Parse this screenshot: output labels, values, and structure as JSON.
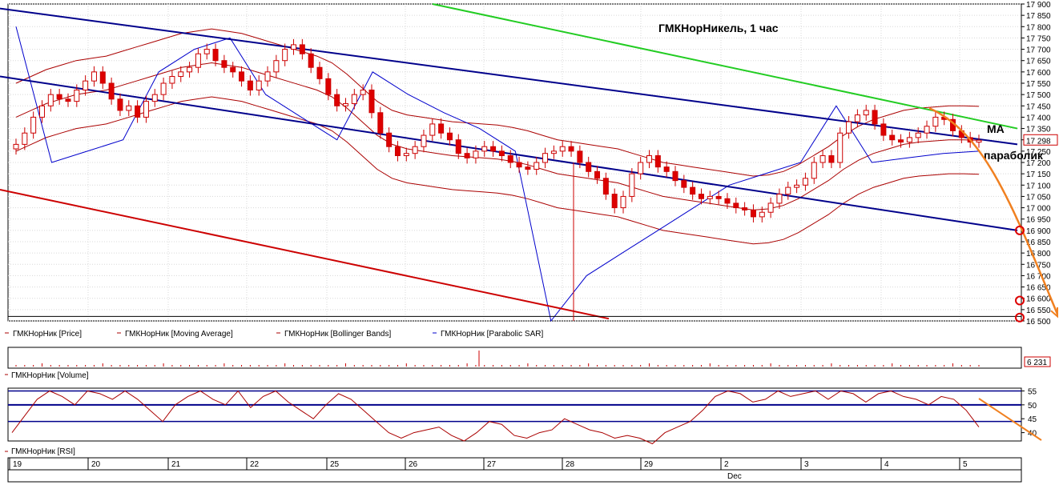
{
  "chart_data": {
    "type": "candlestick",
    "title": "ГМКНорНикель,  1 час",
    "price_panel": {
      "ylim": [
        16500,
        17900
      ],
      "y_ticks": [
        16500,
        16550,
        16600,
        16650,
        16700,
        16750,
        16800,
        16850,
        16900,
        16950,
        17000,
        17050,
        17100,
        17150,
        17200,
        17250,
        17300,
        17350,
        17400,
        17450,
        17500,
        17550,
        17600,
        17650,
        17700,
        17750,
        17800,
        17850,
        17900
      ],
      "last_price_label": "17 298",
      "legend": [
        "ГМКНорНик [Price]",
        "ГМКНорНик [Moving Average]",
        "ГМКНорНик [Bollinger Bands]",
        "ГМКНорНик [Parabolic SAR]"
      ],
      "annotations": [
        "MA",
        "параболик"
      ],
      "candles_step": [
        17280,
        17330,
        17400,
        17450,
        17500,
        17480,
        17470,
        17520,
        17560,
        17600,
        17550,
        17480,
        17430,
        17450,
        17400,
        17470,
        17500,
        17550,
        17580,
        17600,
        17620,
        17680,
        17700,
        17650,
        17620,
        17600,
        17560,
        17520,
        17560,
        17600,
        17650,
        17700,
        17720,
        17680,
        17620,
        17570,
        17500,
        17450,
        17460,
        17500,
        17520,
        17420,
        17330,
        17270,
        17230,
        17240,
        17270,
        17320,
        17370,
        17330,
        17300,
        17240,
        17220,
        17250,
        17270,
        17250,
        17230,
        17200,
        17180,
        17170,
        17200,
        17240,
        17250,
        17270,
        17250,
        17200,
        17160,
        17130,
        17060,
        17000,
        17050,
        17150,
        17200,
        17230,
        17180,
        17160,
        17120,
        17090,
        17060,
        17040,
        17050,
        17040,
        17020,
        17000,
        16990,
        16960,
        16980,
        17020,
        17060,
        17090,
        17100,
        17130,
        17200,
        17230,
        17200,
        17330,
        17380,
        17410,
        17430,
        17370,
        17320,
        17300,
        17290,
        17310,
        17330,
        17360,
        17400,
        17390,
        17340,
        17310,
        17290,
        17298
      ],
      "moving_average": [
        17400,
        17430,
        17460,
        17480,
        17500,
        17510,
        17520,
        17540,
        17560,
        17580,
        17600,
        17620,
        17630,
        17640,
        17630,
        17620,
        17600,
        17580,
        17560,
        17540,
        17520,
        17490,
        17440,
        17380,
        17320,
        17280,
        17260,
        17250,
        17240,
        17230,
        17225,
        17220,
        17215,
        17205,
        17190,
        17170,
        17150,
        17140,
        17130,
        17120,
        17110,
        17090,
        17070,
        17050,
        17040,
        17030,
        17020,
        17010,
        17000,
        16990,
        16995,
        17010,
        17040,
        17080,
        17120,
        17170,
        17210,
        17240,
        17260,
        17280,
        17290,
        17295,
        17300,
        17300,
        17298
      ],
      "sar": [
        17800,
        17200,
        17250,
        17300,
        17600,
        17700,
        17750,
        17500,
        17400,
        17300,
        17600,
        17500,
        17420,
        17350,
        17250,
        16500,
        16700,
        16800,
        16900,
        17000,
        17100,
        17150,
        17200,
        17450,
        17200,
        17220,
        17240,
        17250
      ],
      "channel_upper": [
        [
          0,
          17880
        ],
        [
          1270,
          17280
        ]
      ],
      "channel_middle": [
        [
          0,
          17580
        ],
        [
          1270,
          16900
        ]
      ],
      "channel_lower": [
        [
          0,
          17080
        ],
        [
          760,
          16510
        ]
      ],
      "green_line": [
        [
          540,
          17900
        ],
        [
          1270,
          17350
        ]
      ],
      "forecast": [
        [
          1160,
          17440
        ],
        [
          1230,
          17330
        ],
        [
          1265,
          17000
        ],
        [
          1320,
          16530
        ]
      ]
    },
    "volume_panel": {
      "label": "ГМКНорНик [Volume]",
      "last_value": "6 231"
    },
    "rsi_panel": {
      "label": "ГМКНорНик [RSI]",
      "y_ticks": [
        40,
        45,
        50,
        55
      ],
      "ylim": [
        37,
        56
      ],
      "levels": [
        55,
        50,
        44
      ],
      "values": [
        40,
        46,
        52,
        55,
        53,
        50,
        55,
        54,
        52,
        55,
        52,
        48,
        44,
        50,
        53,
        55,
        52,
        50,
        55,
        49,
        53,
        55,
        51,
        48,
        45,
        50,
        54,
        52,
        48,
        44,
        40,
        38,
        40,
        41,
        42,
        39,
        37,
        40,
        44,
        43,
        39,
        38,
        40,
        41,
        45,
        43,
        41,
        40,
        38,
        39,
        38,
        36,
        40,
        42,
        44,
        48,
        53,
        55,
        54,
        51,
        52,
        55,
        53,
        54,
        55,
        52,
        55,
        54,
        51,
        54,
        55,
        53,
        52,
        50,
        53,
        52,
        48,
        42
      ]
    },
    "x_axis": {
      "labels": [
        "19",
        "20",
        "21",
        "22",
        "25",
        "26",
        "27",
        "28",
        "29",
        "2",
        "3",
        "4",
        "5"
      ],
      "month_label": "Dec"
    }
  }
}
